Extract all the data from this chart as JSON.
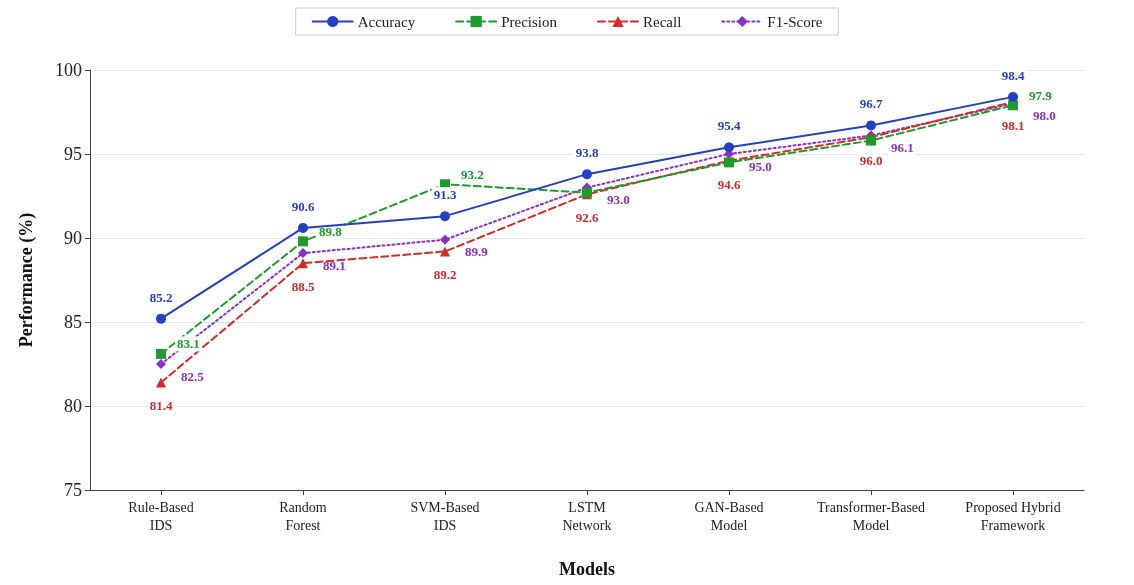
{
  "chart_data": {
    "type": "line",
    "xlabel": "Models",
    "ylabel": "Performance (%)",
    "categories": [
      "Rule-Based\nIDS",
      "Random\nForest",
      "SVM-Based\nIDS",
      "LSTM\nNetwork",
      "GAN-Based\nModel",
      "Transformer-Based\nModel",
      "Proposed Hybrid\nFramework"
    ],
    "series": [
      {
        "name": "Accuracy",
        "color": "#2340c4",
        "marker": "circle",
        "line_style": "solid",
        "values": [
          85.2,
          90.6,
          91.3,
          93.8,
          95.4,
          96.7,
          98.4
        ],
        "value_labels": [
          "85.2",
          "90.6",
          "91.3",
          "93.8",
          "95.4",
          "96.7",
          "98.4"
        ]
      },
      {
        "name": "Precision",
        "color": "#1f9a2c",
        "marker": "square",
        "line_style": "dashed",
        "values": [
          83.1,
          89.8,
          93.2,
          92.7,
          94.5,
          95.8,
          97.9
        ],
        "value_labels": [
          "83.1",
          "89.8",
          "93.2",
          null,
          null,
          null,
          "97.9"
        ]
      },
      {
        "name": "Recall",
        "color": "#d42a2a",
        "marker": "triangle",
        "line_style": "dashed",
        "values": [
          81.4,
          88.5,
          89.2,
          92.6,
          94.6,
          96.0,
          98.1
        ],
        "value_labels": [
          "81.4",
          "88.5",
          "89.2",
          "92.6",
          "94.6",
          "96.0",
          "98.1"
        ]
      },
      {
        "name": "F1-Score",
        "color": "#8a2fc8",
        "marker": "diamond",
        "line_style": "dotted",
        "values": [
          82.5,
          89.1,
          89.9,
          93.0,
          95.0,
          96.1,
          98.0
        ],
        "value_labels": [
          "82.5",
          "89.1",
          "89.9",
          "93.0",
          "95.0",
          "96.1",
          "98.0"
        ]
      }
    ],
    "ylim": [
      75,
      100
    ],
    "yticks": [
      75,
      80,
      85,
      90,
      95,
      100
    ],
    "grid": "y",
    "legend": "top"
  }
}
